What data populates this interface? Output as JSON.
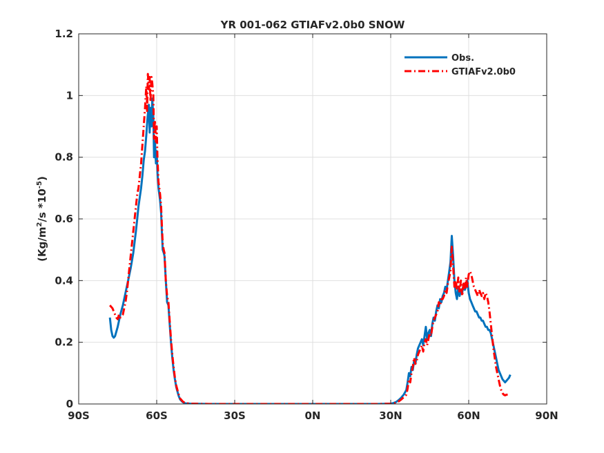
{
  "chart_data": {
    "type": "line",
    "title": "YR 001-062 GTIAFv2.0b0 SNOW",
    "xlabel": "",
    "ylabel": {
      "prefix": "(Kg/m",
      "sup1": "2",
      "mid": "/s *10",
      "sup2": "-5",
      "suffix": ")"
    },
    "xlim": [
      -90,
      90
    ],
    "ylim": [
      0,
      1.2
    ],
    "grid": true,
    "legend_position": "top-right",
    "x_ticks": [
      {
        "value": -90,
        "label": "90S"
      },
      {
        "value": -60,
        "label": "60S"
      },
      {
        "value": -30,
        "label": "30S"
      },
      {
        "value": 0,
        "label": "0N"
      },
      {
        "value": 30,
        "label": "30N"
      },
      {
        "value": 60,
        "label": "60N"
      },
      {
        "value": 90,
        "label": "90N"
      }
    ],
    "y_ticks": [
      {
        "value": 0,
        "label": "0"
      },
      {
        "value": 0.2,
        "label": "0.2"
      },
      {
        "value": 0.4,
        "label": "0.4"
      },
      {
        "value": 0.6,
        "label": "0.6"
      },
      {
        "value": 0.8,
        "label": "0.8"
      },
      {
        "value": 1.0,
        "label": "1"
      },
      {
        "value": 1.2,
        "label": "1.2"
      }
    ],
    "series": [
      {
        "name": "Obs.",
        "color": "#0072bd",
        "style": "solid",
        "points": [
          [
            -78,
            0.28
          ],
          [
            -77.5,
            0.24
          ],
          [
            -77,
            0.22
          ],
          [
            -76.5,
            0.215
          ],
          [
            -76,
            0.22
          ],
          [
            -75,
            0.25
          ],
          [
            -74,
            0.29
          ],
          [
            -73,
            0.32
          ],
          [
            -72,
            0.36
          ],
          [
            -71,
            0.4
          ],
          [
            -70,
            0.44
          ],
          [
            -69,
            0.49
          ],
          [
            -68,
            0.56
          ],
          [
            -67.5,
            0.6
          ],
          [
            -67,
            0.64
          ],
          [
            -66.5,
            0.67
          ],
          [
            -66,
            0.7
          ],
          [
            -65.5,
            0.74
          ],
          [
            -65,
            0.79
          ],
          [
            -64.5,
            0.82
          ],
          [
            -64,
            0.87
          ],
          [
            -63.5,
            0.93
          ],
          [
            -63,
            0.97
          ],
          [
            -62.7,
            0.88
          ],
          [
            -62.4,
            0.96
          ],
          [
            -62,
            0.9
          ],
          [
            -61.7,
            0.99
          ],
          [
            -61.3,
            0.93
          ],
          [
            -61,
            0.8
          ],
          [
            -60.7,
            0.85
          ],
          [
            -60.3,
            0.78
          ],
          [
            -60,
            0.82
          ],
          [
            -59.7,
            0.75
          ],
          [
            -59.3,
            0.7
          ],
          [
            -59,
            0.68
          ],
          [
            -58.7,
            0.66
          ],
          [
            -58.3,
            0.62
          ],
          [
            -58,
            0.56
          ],
          [
            -57.7,
            0.5
          ],
          [
            -57.3,
            0.49
          ],
          [
            -57,
            0.48
          ],
          [
            -56.5,
            0.4
          ],
          [
            -56,
            0.33
          ],
          [
            -55.5,
            0.32
          ],
          [
            -55,
            0.26
          ],
          [
            -54.5,
            0.2
          ],
          [
            -54,
            0.15
          ],
          [
            -53.5,
            0.11
          ],
          [
            -53,
            0.08
          ],
          [
            -52.5,
            0.055
          ],
          [
            -52,
            0.04
          ],
          [
            -51.5,
            0.025
          ],
          [
            -51,
            0.015
          ],
          [
            -50,
            0.006
          ],
          [
            -49,
            0.002
          ],
          [
            -47,
            0.001
          ],
          [
            -40,
            0
          ],
          [
            0,
            0
          ],
          [
            25,
            0
          ],
          [
            30,
            0.001
          ],
          [
            31,
            0.003
          ],
          [
            32,
            0.006
          ],
          [
            33,
            0.012
          ],
          [
            34,
            0.02
          ],
          [
            35,
            0.03
          ],
          [
            36,
            0.045
          ],
          [
            36.5,
            0.07
          ],
          [
            37,
            0.1
          ],
          [
            37.5,
            0.09
          ],
          [
            38,
            0.12
          ],
          [
            38.5,
            0.11
          ],
          [
            39,
            0.14
          ],
          [
            39.5,
            0.13
          ],
          [
            40,
            0.16
          ],
          [
            40.5,
            0.18
          ],
          [
            41,
            0.19
          ],
          [
            41.5,
            0.2
          ],
          [
            42,
            0.21
          ],
          [
            42.5,
            0.19
          ],
          [
            43,
            0.22
          ],
          [
            43.5,
            0.25
          ],
          [
            44,
            0.21
          ],
          [
            44.5,
            0.23
          ],
          [
            45,
            0.24
          ],
          [
            45.5,
            0.22
          ],
          [
            46,
            0.26
          ],
          [
            46.5,
            0.28
          ],
          [
            47,
            0.27
          ],
          [
            47.5,
            0.3
          ],
          [
            48,
            0.32
          ],
          [
            48.5,
            0.31
          ],
          [
            49,
            0.34
          ],
          [
            49.5,
            0.33
          ],
          [
            50,
            0.35
          ],
          [
            50.5,
            0.36
          ],
          [
            51,
            0.38
          ],
          [
            51.5,
            0.37
          ],
          [
            52,
            0.4
          ],
          [
            52.5,
            0.43
          ],
          [
            53,
            0.46
          ],
          [
            53.5,
            0.545
          ],
          [
            54,
            0.48
          ],
          [
            54.5,
            0.4
          ],
          [
            55,
            0.36
          ],
          [
            55.5,
            0.34
          ],
          [
            56,
            0.38
          ],
          [
            56.5,
            0.35
          ],
          [
            57,
            0.37
          ],
          [
            57.5,
            0.36
          ],
          [
            58,
            0.39
          ],
          [
            58.5,
            0.37
          ],
          [
            59,
            0.38
          ],
          [
            59.5,
            0.4
          ],
          [
            60,
            0.36
          ],
          [
            60.5,
            0.34
          ],
          [
            61,
            0.33
          ],
          [
            61.5,
            0.32
          ],
          [
            62,
            0.31
          ],
          [
            62.5,
            0.3
          ],
          [
            63,
            0.3
          ],
          [
            63.5,
            0.29
          ],
          [
            64,
            0.28
          ],
          [
            64.5,
            0.28
          ],
          [
            65,
            0.27
          ],
          [
            65.5,
            0.27
          ],
          [
            66,
            0.26
          ],
          [
            66.5,
            0.25
          ],
          [
            67,
            0.25
          ],
          [
            67.5,
            0.24
          ],
          [
            68,
            0.24
          ],
          [
            68.5,
            0.23
          ],
          [
            69,
            0.21
          ],
          [
            69.5,
            0.19
          ],
          [
            70,
            0.17
          ],
          [
            70.5,
            0.15
          ],
          [
            71,
            0.13
          ],
          [
            71.5,
            0.11
          ],
          [
            72,
            0.1
          ],
          [
            72.5,
            0.09
          ],
          [
            73,
            0.08
          ],
          [
            73.5,
            0.075
          ],
          [
            74,
            0.07
          ],
          [
            74.5,
            0.075
          ],
          [
            75,
            0.08
          ],
          [
            75.5,
            0.085
          ],
          [
            76,
            0.095
          ]
        ]
      },
      {
        "name": "GTIAFv2.0b0",
        "color": "#ff0000",
        "style": "dashdot",
        "points": [
          [
            -78,
            0.32
          ],
          [
            -77.5,
            0.315
          ],
          [
            -77,
            0.31
          ],
          [
            -76.5,
            0.3
          ],
          [
            -76,
            0.29
          ],
          [
            -75.5,
            0.28
          ],
          [
            -75,
            0.275
          ],
          [
            -74.5,
            0.29
          ],
          [
            -74,
            0.28
          ],
          [
            -73.5,
            0.285
          ],
          [
            -73,
            0.29
          ],
          [
            -72.5,
            0.31
          ],
          [
            -72,
            0.33
          ],
          [
            -71.5,
            0.36
          ],
          [
            -71,
            0.4
          ],
          [
            -70.5,
            0.44
          ],
          [
            -70,
            0.48
          ],
          [
            -69.5,
            0.52
          ],
          [
            -69,
            0.56
          ],
          [
            -68.5,
            0.6
          ],
          [
            -68,
            0.64
          ],
          [
            -67.5,
            0.68
          ],
          [
            -67,
            0.7
          ],
          [
            -66.5,
            0.74
          ],
          [
            -66,
            0.78
          ],
          [
            -65.5,
            0.84
          ],
          [
            -65,
            0.9
          ],
          [
            -64.5,
            0.96
          ],
          [
            -64,
            1.03
          ],
          [
            -63.7,
            0.95
          ],
          [
            -63.4,
            1.07
          ],
          [
            -63,
            1.02
          ],
          [
            -62.7,
            1.06
          ],
          [
            -62.4,
            0.98
          ],
          [
            -62,
            1.06
          ],
          [
            -61.7,
            1.04
          ],
          [
            -61.3,
            1.0
          ],
          [
            -61,
            0.86
          ],
          [
            -60.7,
            0.92
          ],
          [
            -60.3,
            0.85
          ],
          [
            -60,
            0.9
          ],
          [
            -59.7,
            0.8
          ],
          [
            -59.3,
            0.72
          ],
          [
            -59,
            0.7
          ],
          [
            -58.7,
            0.68
          ],
          [
            -58.3,
            0.64
          ],
          [
            -58,
            0.58
          ],
          [
            -57.7,
            0.52
          ],
          [
            -57.3,
            0.5
          ],
          [
            -57,
            0.49
          ],
          [
            -56.5,
            0.4
          ],
          [
            -56,
            0.35
          ],
          [
            -55.5,
            0.33
          ],
          [
            -55,
            0.27
          ],
          [
            -54.5,
            0.21
          ],
          [
            -54,
            0.16
          ],
          [
            -53.5,
            0.12
          ],
          [
            -53,
            0.085
          ],
          [
            -52.5,
            0.06
          ],
          [
            -52,
            0.045
          ],
          [
            -51.5,
            0.03
          ],
          [
            -51,
            0.018
          ],
          [
            -50,
            0.008
          ],
          [
            -49,
            0.003
          ],
          [
            -47,
            0.001
          ],
          [
            -40,
            0
          ],
          [
            0,
            0
          ],
          [
            25,
            0
          ],
          [
            30,
            0.001
          ],
          [
            31,
            0.002
          ],
          [
            32,
            0.004
          ],
          [
            33,
            0.008
          ],
          [
            34,
            0.014
          ],
          [
            35,
            0.022
          ],
          [
            36,
            0.03
          ],
          [
            36.5,
            0.05
          ],
          [
            37,
            0.08
          ],
          [
            37.5,
            0.07
          ],
          [
            38,
            0.1
          ],
          [
            38.5,
            0.12
          ],
          [
            39,
            0.15
          ],
          [
            39.5,
            0.13
          ],
          [
            40,
            0.14
          ],
          [
            40.5,
            0.16
          ],
          [
            41,
            0.17
          ],
          [
            41.5,
            0.18
          ],
          [
            42,
            0.19
          ],
          [
            42.5,
            0.17
          ],
          [
            43,
            0.2
          ],
          [
            43.5,
            0.21
          ],
          [
            44,
            0.19
          ],
          [
            44.5,
            0.21
          ],
          [
            45,
            0.23
          ],
          [
            45.5,
            0.22
          ],
          [
            46,
            0.25
          ],
          [
            46.5,
            0.27
          ],
          [
            47,
            0.28
          ],
          [
            47.5,
            0.29
          ],
          [
            48,
            0.3
          ],
          [
            48.5,
            0.33
          ],
          [
            49,
            0.32
          ],
          [
            49.5,
            0.34
          ],
          [
            50,
            0.34
          ],
          [
            50.5,
            0.35
          ],
          [
            51,
            0.37
          ],
          [
            51.5,
            0.36
          ],
          [
            52,
            0.39
          ],
          [
            52.5,
            0.41
          ],
          [
            53,
            0.43
          ],
          [
            53.5,
            0.51
          ],
          [
            54,
            0.45
          ],
          [
            54.5,
            0.38
          ],
          [
            55,
            0.4
          ],
          [
            55.5,
            0.37
          ],
          [
            56,
            0.41
          ],
          [
            56.5,
            0.36
          ],
          [
            57,
            0.4
          ],
          [
            57.5,
            0.35
          ],
          [
            58,
            0.39
          ],
          [
            58.5,
            0.37
          ],
          [
            59,
            0.41
          ],
          [
            59.5,
            0.38
          ],
          [
            60,
            0.42
          ],
          [
            60.5,
            0.43
          ],
          [
            61,
            0.42
          ],
          [
            61.5,
            0.4
          ],
          [
            62,
            0.38
          ],
          [
            62.5,
            0.37
          ],
          [
            63,
            0.36
          ],
          [
            63.5,
            0.35
          ],
          [
            64,
            0.37
          ],
          [
            64.5,
            0.36
          ],
          [
            65,
            0.35
          ],
          [
            65.5,
            0.36
          ],
          [
            66,
            0.34
          ],
          [
            66.5,
            0.36
          ],
          [
            67,
            0.35
          ],
          [
            67.5,
            0.33
          ],
          [
            68,
            0.3
          ],
          [
            68.5,
            0.26
          ],
          [
            69,
            0.22
          ],
          [
            69.5,
            0.18
          ],
          [
            70,
            0.15
          ],
          [
            70.5,
            0.12
          ],
          [
            71,
            0.1
          ],
          [
            71.5,
            0.08
          ],
          [
            72,
            0.06
          ],
          [
            72.5,
            0.045
          ],
          [
            73,
            0.035
          ],
          [
            73.5,
            0.03
          ],
          [
            74,
            0.028
          ],
          [
            74.5,
            0.03
          ],
          [
            75,
            0.03
          ]
        ]
      }
    ]
  }
}
